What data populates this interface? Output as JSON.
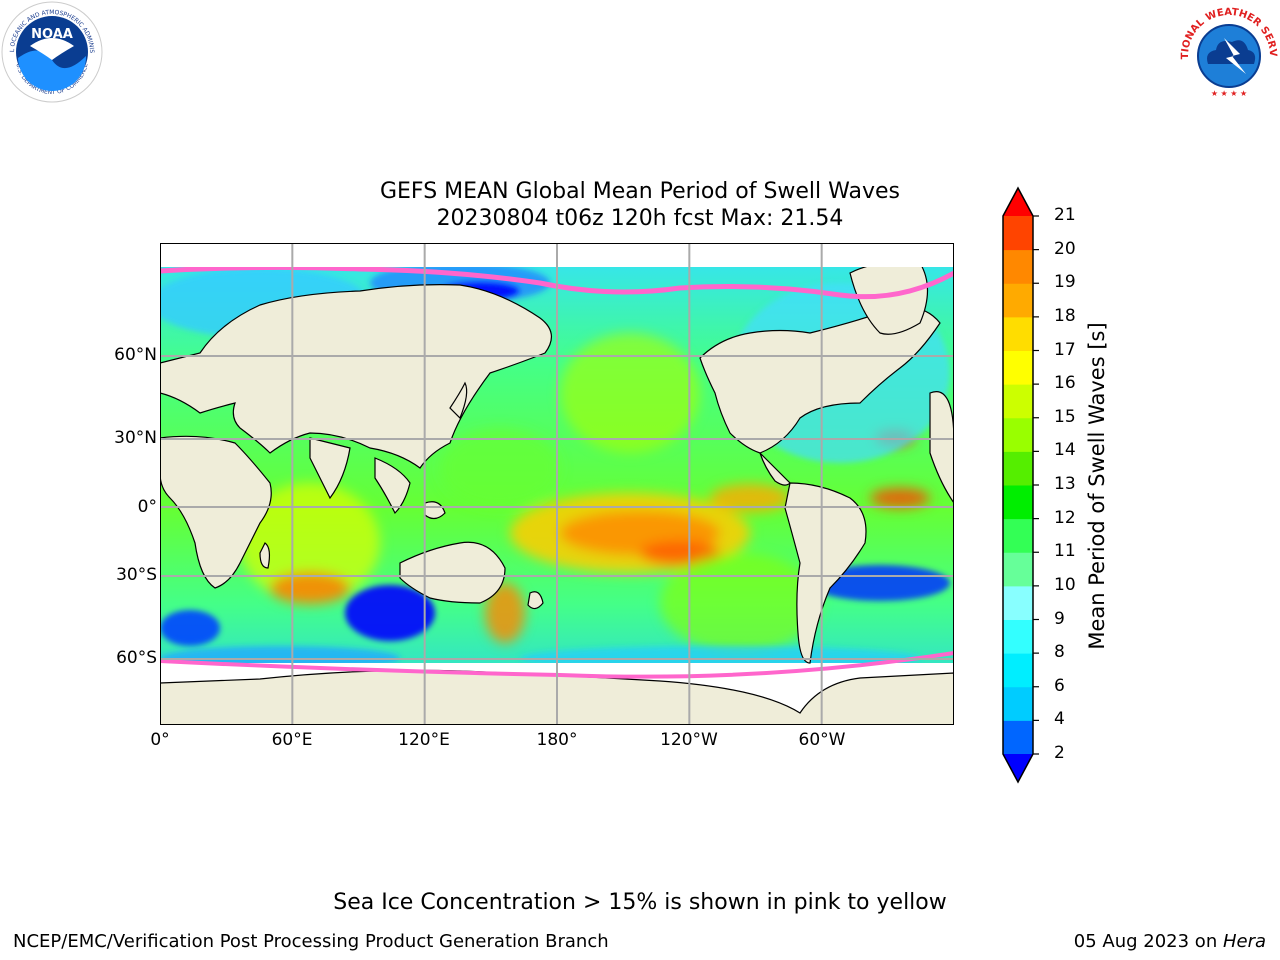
{
  "header": {
    "noaa_logo_text": "NOAA",
    "noaa_ring_text": "NATIONAL OCEANIC AND ATMOSPHERIC ADMINISTRATION",
    "noaa_ring_bottom": "U.S. DEPARTMENT OF COMMERCE",
    "nws_ring_text": "NATIONAL WEATHER SERVICE"
  },
  "title_line1": "GEFS MEAN Global Mean Period of Swell Waves",
  "title_line2": "20230804 t06z 120h fcst   Max: 21.54",
  "axes": {
    "lat_labels": [
      "60°N",
      "30°N",
      "0°",
      "30°S",
      "60°S"
    ],
    "lon_labels": [
      "0°",
      "60°E",
      "120°E",
      "180°",
      "120°W",
      "60°W"
    ]
  },
  "colorbar": {
    "label": "Mean Period of Swell Waves [s]",
    "ticks": [
      "2",
      "4",
      "6",
      "8",
      "9",
      "10",
      "11",
      "12",
      "13",
      "14",
      "15",
      "16",
      "17",
      "18",
      "19",
      "20",
      "21"
    ],
    "colors": [
      "#0066ff",
      "#00ccff",
      "#00eeff",
      "#33ffff",
      "#88ffff",
      "#66ff99",
      "#33ff55",
      "#00ee00",
      "#55ee00",
      "#99ff00",
      "#ccff00",
      "#ffff00",
      "#ffdd00",
      "#ffaa00",
      "#ff8800",
      "#ff4400",
      "#ff2200"
    ],
    "under_color": "#0000ff",
    "over_color": "#ff0000"
  },
  "note": "Sea Ice Concentration > 15% is shown in pink to yellow",
  "footer": {
    "left": "NCEP/EMC/Verification Post Processing Product Generation Branch",
    "right_date": "05 Aug 2023 on ",
    "right_host": "Hera"
  },
  "palette": {
    "land": "#efedd9",
    "grid": "#aaaaaa",
    "ice_pink": "#ff66cc",
    "ocean_low": "#0000ff",
    "ocean_mid": "#33ff55",
    "ocean_high": "#ff6600"
  }
}
